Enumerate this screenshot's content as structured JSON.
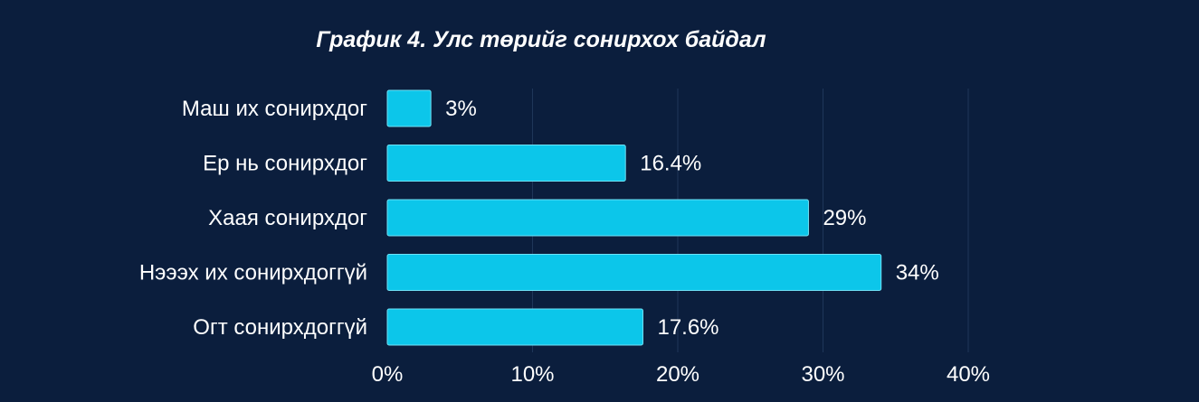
{
  "chart_data": {
    "type": "bar",
    "orientation": "horizontal",
    "title": "График 4. Улс төрийг сонирхох байдал",
    "categories": [
      "Маш их сонирхдог",
      "Ер нь сонирхдог",
      "Хаая сонирхдог",
      "Нэээх их сонирхдоггүй",
      "Огт сонирхдоггүй"
    ],
    "values": [
      3,
      16.4,
      29,
      34,
      17.6
    ],
    "value_labels": [
      "3%",
      "16.4%",
      "29%",
      "34%",
      "17.6%"
    ],
    "xlim": [
      0,
      40
    ],
    "x_ticks": [
      0,
      10,
      20,
      30,
      40
    ],
    "x_tick_labels": [
      "0%",
      "10%",
      "20%",
      "30%",
      "40%"
    ],
    "grid": true,
    "colors": {
      "background": "#0b1e3d",
      "bar": "#0cc6ea",
      "bar_edge": "#6fe2f6",
      "grid": "#1f3659",
      "text": "#ffffff"
    }
  }
}
